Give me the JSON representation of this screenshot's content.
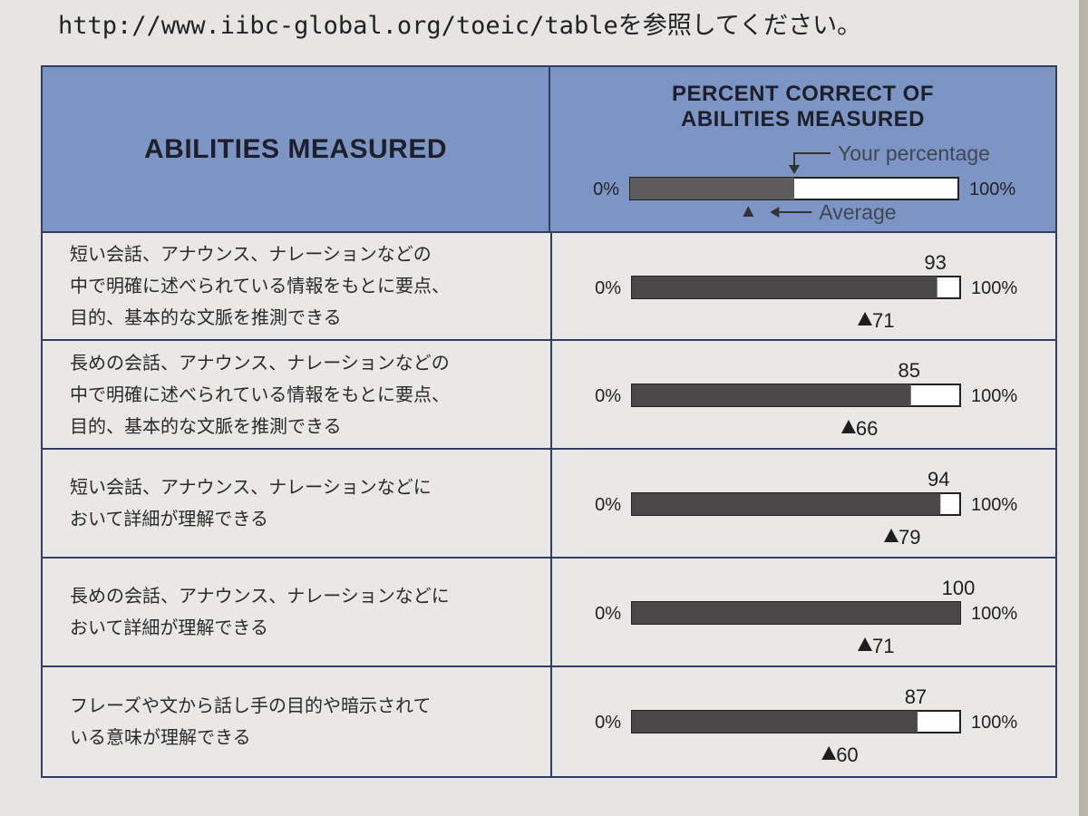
{
  "header_line": {
    "url": "http://www.iibc-global.org/toeic/table",
    "suffix": "を参照してください。"
  },
  "table": {
    "left_header": "ABILITIES MEASURED",
    "right_header_line1": "PERCENT CORRECT OF",
    "right_header_line2": "ABILITIES MEASURED",
    "legend": {
      "your_percentage_label": "Your percentage",
      "average_label": "Average",
      "min_label": "0%",
      "max_label": "100%",
      "sample_value": 50,
      "sample_average": 36
    }
  },
  "chart_data": {
    "type": "bar",
    "orientation": "horizontal",
    "xlim": [
      0,
      100
    ],
    "min_label": "0%",
    "max_label": "100%",
    "categories": [
      [
        "短い会話、アナウンス、ナレーションなどの",
        "中で明確に述べられている情報をもとに要点、",
        "目的、基本的な文脈を推測できる"
      ],
      [
        "長めの会話、アナウンス、ナレーションなどの",
        "中で明確に述べられている情報をもとに要点、",
        "目的、基本的な文脈を推測できる"
      ],
      [
        "短い会話、アナウンス、ナレーションなどに",
        "おいて詳細が理解できる"
      ],
      [
        "長めの会話、アナウンス、ナレーションなどに",
        "おいて詳細が理解できる"
      ],
      [
        "フレーズや文から話し手の目的や暗示されて",
        "いる意味が理解できる"
      ]
    ],
    "series": [
      {
        "name": "Your percentage",
        "values": [
          93,
          85,
          94,
          100,
          87
        ]
      },
      {
        "name": "Average",
        "values": [
          71,
          66,
          79,
          71,
          60
        ]
      }
    ]
  }
}
